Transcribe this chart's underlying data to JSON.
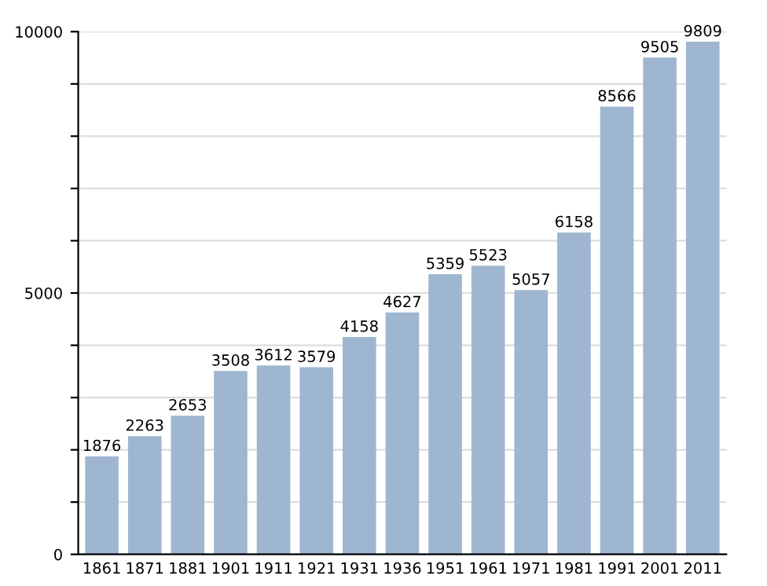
{
  "chart_data": {
    "type": "bar",
    "categories": [
      "1861",
      "1871",
      "1881",
      "1901",
      "1911",
      "1921",
      "1931",
      "1936",
      "1951",
      "1961",
      "1971",
      "1981",
      "1991",
      "2001",
      "2011"
    ],
    "values": [
      1876,
      2263,
      2653,
      3508,
      3612,
      3579,
      4158,
      4627,
      5359,
      5523,
      5057,
      6158,
      8566,
      9505,
      9809
    ],
    "color": "#9fb6d0",
    "data_labels": true,
    "grid": "y",
    "ylim": [
      0,
      10000
    ],
    "yticks": [
      0,
      {
        "value": 1000,
        "label": null
      },
      {
        "value": 2000,
        "label": null
      },
      {
        "value": 3000,
        "label": null
      },
      {
        "value": 4000,
        "label": null
      },
      5000,
      {
        "value": 6000,
        "label": null
      },
      {
        "value": 7000,
        "label": null
      },
      {
        "value": 8000,
        "label": null
      },
      {
        "value": 9000,
        "label": null
      },
      10000
    ]
  }
}
